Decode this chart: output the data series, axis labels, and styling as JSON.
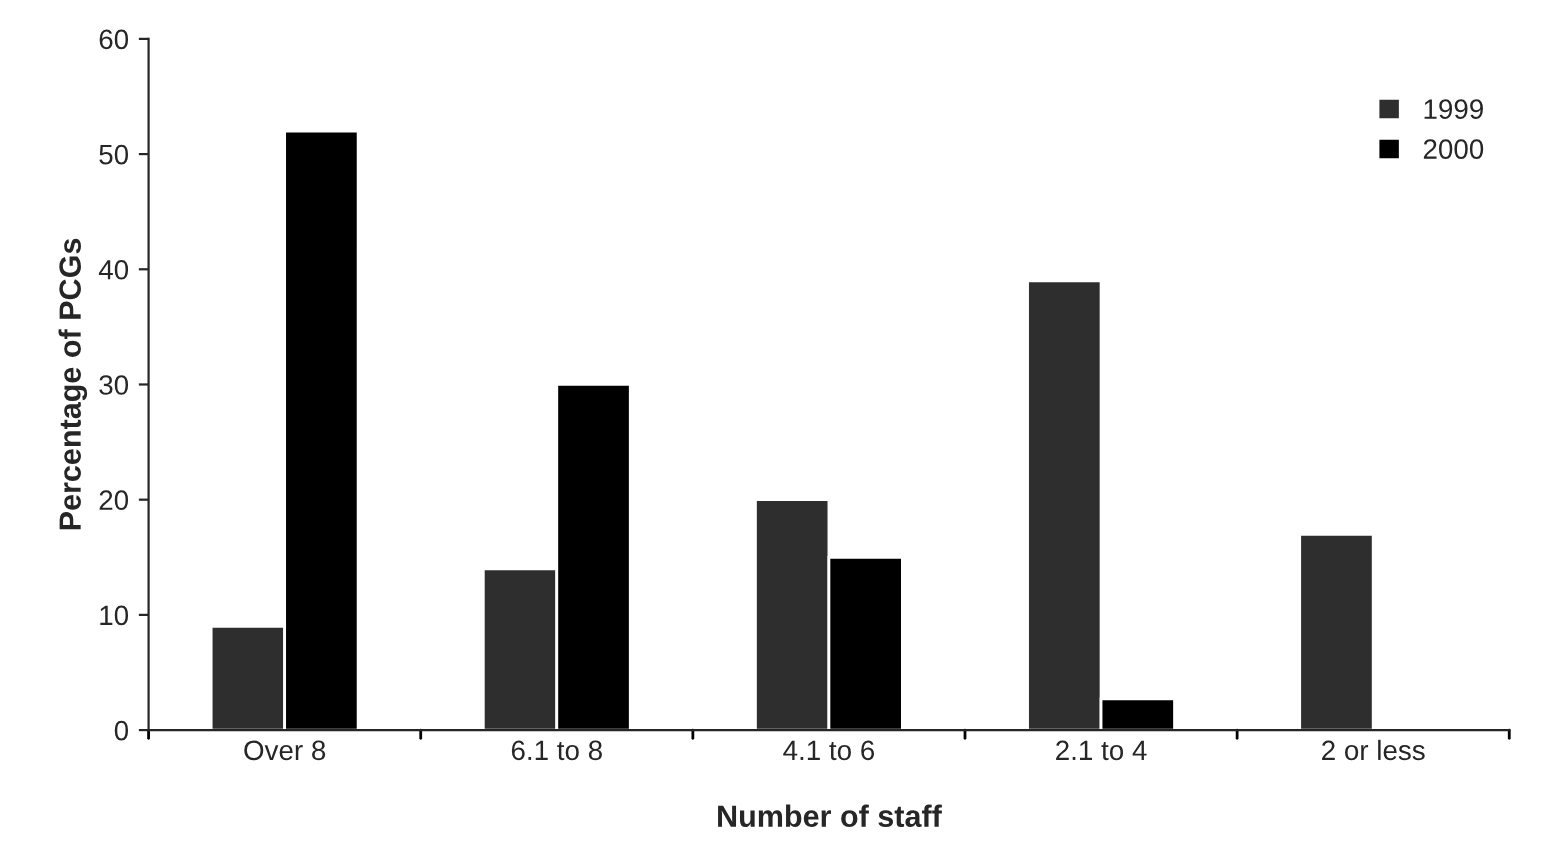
{
  "chart_data": {
    "type": "bar",
    "xlabel": "Number of staff",
    "ylabel": "Percentage of PCGs",
    "categories": [
      "Over 8",
      "6.1 to 8",
      "4.1 to 6",
      "2.1 to 4",
      "2 or less"
    ],
    "series": [
      {
        "name": "1999",
        "color": "#2e2e2e",
        "values": [
          9,
          14,
          20,
          39,
          17
        ]
      },
      {
        "name": "2000",
        "color": "#000000",
        "values": [
          52,
          30,
          15,
          2.7,
          null
        ]
      }
    ],
    "ylim": [
      0,
      60
    ],
    "yticks": [
      0,
      10,
      20,
      30,
      40,
      50,
      60
    ],
    "grid": false,
    "legend": "top right"
  }
}
